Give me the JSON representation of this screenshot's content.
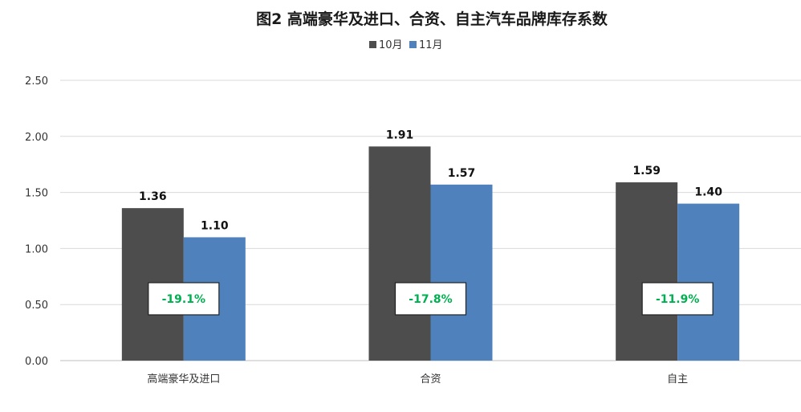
{
  "chart_data": {
    "type": "bar",
    "title": "图2  高端豪华及进口、合资、自主汽车品牌库存系数",
    "categories": [
      "高端豪华及进口",
      "合资",
      "自主"
    ],
    "series": [
      {
        "name": "10月",
        "values": [
          1.36,
          1.91,
          1.59
        ],
        "color": "#4d4d4d"
      },
      {
        "name": "11月",
        "values": [
          1.1,
          1.57,
          1.4
        ],
        "color": "#4f81bd"
      }
    ],
    "value_labels": [
      [
        "1.36",
        "1.91",
        "1.59"
      ],
      [
        "1.10",
        "1.57",
        "1.40"
      ]
    ],
    "ylim": [
      0,
      2.5
    ],
    "yticks": [
      0,
      0.5,
      1.0,
      1.5,
      2.0,
      2.5
    ],
    "ytick_labels": [
      "0.00",
      "0.50",
      "1.00",
      "1.50",
      "2.00",
      "2.50"
    ],
    "grid": true,
    "legend_position": "top-center",
    "annotations": [
      "-19.1%",
      "-17.8%",
      "-11.9%"
    ],
    "annotation_color": "#00b050",
    "xlabel": "",
    "ylabel": ""
  }
}
